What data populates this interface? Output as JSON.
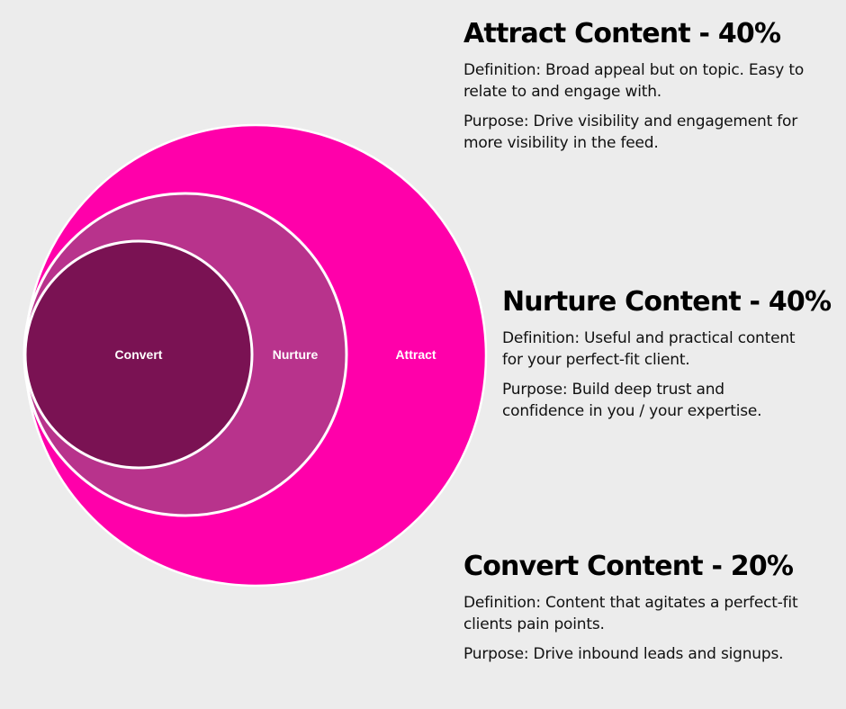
{
  "diagram": {
    "circles": [
      {
        "label": "Attract",
        "color": "#ff00aa"
      },
      {
        "label": "Nurture",
        "color": "#b8338c"
      },
      {
        "label": "Convert",
        "color": "#7a1253"
      }
    ]
  },
  "sections": {
    "attract": {
      "title": "Attract Content - 40%",
      "definition": "Definition: Broad appeal but on topic. Easy to relate to and engage with.",
      "purpose": "Purpose: Drive visibility and engagement for more visibility in the feed."
    },
    "nurture": {
      "title": "Nurture Content - 40%",
      "definition": "Definition: Useful and practical content for your perfect-fit client.",
      "purpose": "Purpose: Build deep trust and confidence in you / your expertise."
    },
    "convert": {
      "title": "Convert Content - 20%",
      "definition": "Definition: Content that agitates a perfect-fit clients pain points.",
      "purpose": "Purpose: Drive inbound leads and signups."
    }
  }
}
